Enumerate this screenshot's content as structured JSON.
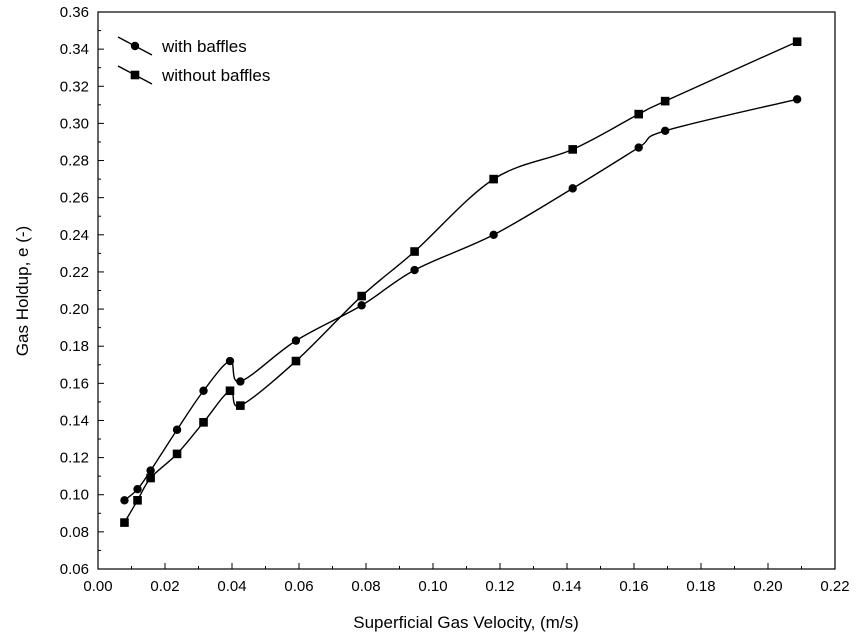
{
  "chart_data": {
    "type": "line",
    "title": "",
    "xlabel": "Superficial Gas Velocity,  (m/s)",
    "ylabel": "Gas Holdup, e (-)",
    "xlim": [
      0.0,
      0.22
    ],
    "ylim": [
      0.06,
      0.36
    ],
    "x_ticks": [
      "0.00",
      "0.02",
      "0.04",
      "0.06",
      "0.08",
      "0.10",
      "0.12",
      "0.14",
      "0.16",
      "0.18",
      "0.20",
      "0.22"
    ],
    "y_ticks": [
      "0.06",
      "0.08",
      "0.10",
      "0.12",
      "0.14",
      "0.16",
      "0.18",
      "0.20",
      "0.22",
      "0.24",
      "0.26",
      "0.28",
      "0.30",
      "0.32",
      "0.34",
      "0.36"
    ],
    "grid": false,
    "legend_position": "top-left",
    "series": [
      {
        "name": "with baffles",
        "marker": "circle",
        "color": "#000000",
        "x": [
          0.0079,
          0.0118,
          0.0157,
          0.0236,
          0.0315,
          0.0394,
          0.0425,
          0.0591,
          0.0787,
          0.0945,
          0.1181,
          0.1417,
          0.1614,
          0.1693,
          0.2087
        ],
        "y": [
          0.097,
          0.103,
          0.113,
          0.135,
          0.156,
          0.172,
          0.161,
          0.183,
          0.202,
          0.221,
          0.24,
          0.265,
          0.287,
          0.296,
          0.313
        ]
      },
      {
        "name": "without baffles",
        "marker": "square",
        "color": "#000000",
        "x": [
          0.0079,
          0.0118,
          0.0157,
          0.0236,
          0.0315,
          0.0394,
          0.0425,
          0.0591,
          0.0787,
          0.0945,
          0.1181,
          0.1417,
          0.1614,
          0.1693,
          0.2087
        ],
        "y": [
          0.085,
          0.097,
          0.109,
          0.122,
          0.139,
          0.156,
          0.148,
          0.172,
          0.207,
          0.231,
          0.27,
          0.286,
          0.305,
          0.312,
          0.344
        ]
      }
    ]
  }
}
